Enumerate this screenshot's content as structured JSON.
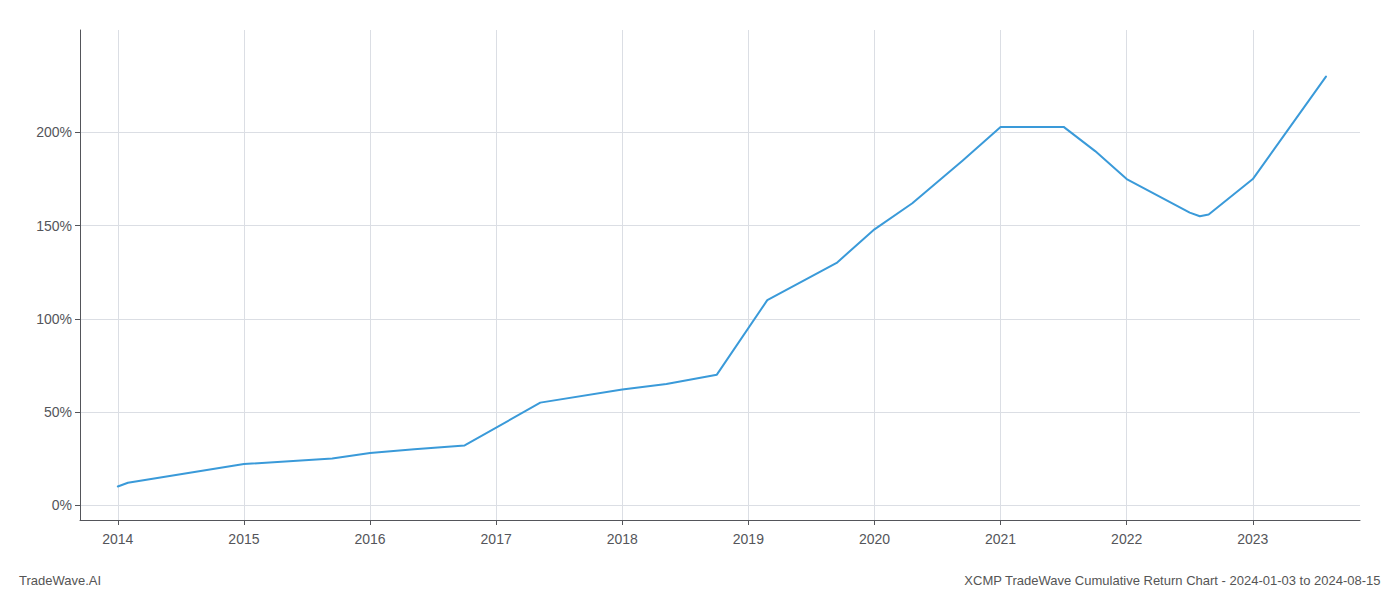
{
  "chart_data": {
    "type": "line",
    "title": "XCMP TradeWave Cumulative Return Chart - 2024-01-03 to 2024-08-15",
    "annotations": [
      {
        "text": "TradeWave.AI"
      }
    ],
    "x": [
      2014.0,
      2014.08,
      2015.0,
      2015.7,
      2016.0,
      2016.35,
      2016.75,
      2017.35,
      2018.0,
      2018.35,
      2018.75,
      2019.15,
      2019.7,
      2020.0,
      2020.3,
      2020.7,
      2021.0,
      2021.5,
      2021.75,
      2022.0,
      2022.5,
      2022.58,
      2022.65,
      2023.0,
      2023.58
    ],
    "values": [
      10,
      12,
      22,
      25,
      28,
      30,
      32,
      55,
      62,
      65,
      70,
      110,
      130,
      148,
      162,
      185,
      203,
      203,
      190,
      175,
      157,
      155,
      156,
      175,
      230
    ],
    "color": "#3a9ad9",
    "xlim": [
      2013.7,
      2023.85
    ],
    "xticks": [
      2014,
      2015,
      2016,
      2017,
      2018,
      2019,
      2020,
      2021,
      2022,
      2023
    ],
    "ylim": [
      -8,
      255
    ],
    "yticks": [
      {
        "value": 0,
        "label": "0%"
      },
      {
        "value": 50,
        "label": "50%"
      },
      {
        "value": 100,
        "label": "100%"
      },
      {
        "value": 150,
        "label": "150%"
      },
      {
        "value": 200,
        "label": "200%"
      }
    ],
    "grid": true
  }
}
